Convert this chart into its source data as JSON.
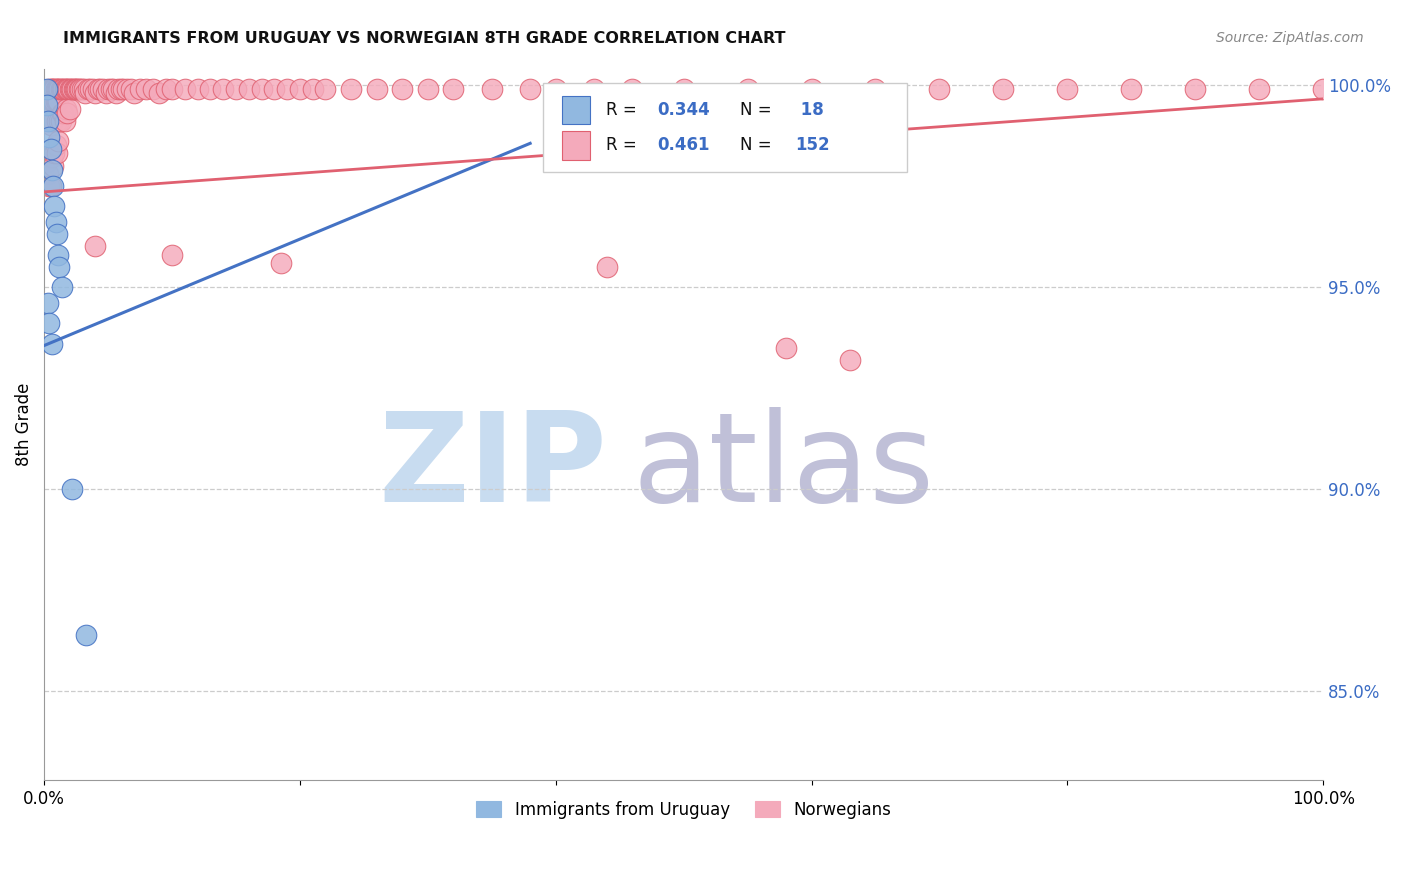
{
  "title": "IMMIGRANTS FROM URUGUAY VS NORWEGIAN 8TH GRADE CORRELATION CHART",
  "source": "Source: ZipAtlas.com",
  "ylabel": "8th Grade",
  "ytick_labels": [
    "85.0%",
    "90.0%",
    "95.0%",
    "100.0%"
  ],
  "ytick_values": [
    0.85,
    0.9,
    0.95,
    1.0
  ],
  "legend_label1": "Immigrants from Uruguay",
  "legend_label2": "Norwegians",
  "blue_color": "#91B8E0",
  "pink_color": "#F4AABB",
  "blue_line_color": "#4472C4",
  "pink_line_color": "#E06070",
  "blue_R": 0.344,
  "blue_N": 18,
  "pink_R": 0.461,
  "pink_N": 152,
  "blue_trend_x": [
    0.0,
    0.38
  ],
  "blue_trend_y": [
    0.9355,
    0.9855
  ],
  "pink_trend_x": [
    0.0,
    1.0
  ],
  "pink_trend_y": [
    0.9735,
    0.9965
  ],
  "blue_x": [
    0.002,
    0.002,
    0.003,
    0.004,
    0.005,
    0.006,
    0.007,
    0.008,
    0.009,
    0.01,
    0.011,
    0.012,
    0.014,
    0.003,
    0.004,
    0.006,
    0.022,
    0.033
  ],
  "blue_y": [
    0.999,
    0.995,
    0.991,
    0.987,
    0.984,
    0.979,
    0.975,
    0.97,
    0.966,
    0.963,
    0.958,
    0.955,
    0.95,
    0.946,
    0.941,
    0.936,
    0.9,
    0.864
  ],
  "pink_x_cluster": [
    0.002,
    0.003,
    0.003,
    0.003,
    0.004,
    0.004,
    0.004,
    0.005,
    0.005,
    0.005,
    0.005,
    0.006,
    0.006,
    0.006,
    0.006,
    0.007,
    0.007,
    0.007,
    0.007,
    0.008,
    0.008,
    0.008,
    0.009,
    0.009,
    0.009,
    0.01,
    0.01,
    0.01,
    0.01,
    0.011,
    0.011,
    0.011,
    0.012,
    0.012,
    0.013,
    0.013,
    0.014,
    0.014,
    0.015,
    0.015,
    0.016,
    0.016,
    0.017,
    0.017,
    0.018,
    0.018,
    0.019,
    0.02,
    0.02,
    0.021,
    0.022,
    0.023,
    0.024,
    0.025,
    0.026,
    0.027,
    0.028,
    0.03,
    0.031,
    0.032,
    0.034,
    0.036,
    0.038,
    0.04,
    0.042,
    0.044,
    0.046,
    0.048,
    0.05,
    0.052,
    0.054,
    0.056,
    0.058,
    0.06,
    0.062,
    0.065,
    0.068,
    0.07,
    0.075,
    0.08,
    0.085,
    0.09,
    0.095,
    0.1,
    0.11,
    0.12,
    0.13,
    0.14,
    0.15,
    0.16,
    0.17,
    0.18,
    0.19,
    0.2,
    0.21,
    0.22,
    0.24,
    0.26,
    0.28,
    0.3,
    0.32,
    0.35,
    0.38,
    0.4,
    0.43,
    0.46,
    0.5,
    0.55,
    0.6,
    0.65,
    0.7,
    0.75,
    0.8,
    0.85,
    0.9,
    0.95,
    1.0
  ],
  "pink_y_cluster": [
    0.981,
    0.998,
    0.994,
    0.978,
    0.999,
    0.995,
    0.975,
    0.999,
    0.995,
    0.99,
    0.975,
    0.999,
    0.996,
    0.991,
    0.982,
    0.999,
    0.996,
    0.991,
    0.98,
    0.999,
    0.996,
    0.983,
    0.999,
    0.996,
    0.985,
    0.999,
    0.996,
    0.991,
    0.983,
    0.999,
    0.996,
    0.986,
    0.999,
    0.991,
    0.999,
    0.991,
    0.999,
    0.993,
    0.999,
    0.993,
    0.999,
    0.991,
    0.999,
    0.994,
    0.999,
    0.993,
    0.999,
    0.999,
    0.994,
    0.999,
    0.999,
    0.999,
    0.999,
    0.999,
    0.999,
    0.999,
    0.999,
    0.999,
    0.999,
    0.998,
    0.999,
    0.999,
    0.999,
    0.998,
    0.999,
    0.999,
    0.999,
    0.998,
    0.999,
    0.999,
    0.999,
    0.998,
    0.999,
    0.999,
    0.999,
    0.999,
    0.999,
    0.998,
    0.999,
    0.999,
    0.999,
    0.998,
    0.999,
    0.999,
    0.999,
    0.999,
    0.999,
    0.999,
    0.999,
    0.999,
    0.999,
    0.999,
    0.999,
    0.999,
    0.999,
    0.999,
    0.999,
    0.999,
    0.999,
    0.999,
    0.999,
    0.999,
    0.999,
    0.999,
    0.999,
    0.999,
    0.999,
    0.999,
    0.999,
    0.999,
    0.999,
    0.999,
    0.999,
    0.999,
    0.999,
    0.999,
    0.999
  ],
  "pink_outlier_x": [
    0.04,
    0.1,
    0.185,
    0.44,
    0.58,
    0.63
  ],
  "pink_outlier_y": [
    0.96,
    0.958,
    0.956,
    0.955,
    0.935,
    0.932
  ],
  "xlim": [
    0.0,
    1.0
  ],
  "ylim": [
    0.828,
    1.004
  ],
  "watermark_zip": "ZIP",
  "watermark_atlas": "atlas",
  "watermark_color_zip": "#C8DCF0",
  "watermark_color_atlas": "#C0C0D8",
  "background_color": "#FFFFFF"
}
